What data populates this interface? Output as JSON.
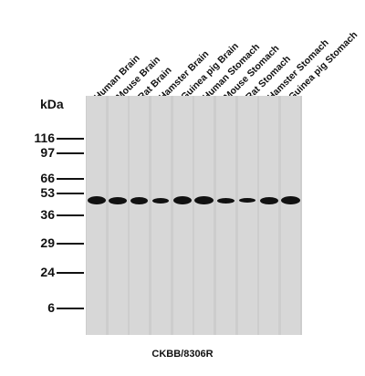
{
  "lanes": [
    "Human Brain",
    "Mouse Brain",
    "Rat Brain",
    "Hamster Brain",
    "Guinea pig Brain",
    "Human Stomach",
    "Mouse Stomach",
    "Rat Stomach",
    "Hamster Stomach",
    "Guinea pig Stomach"
  ],
  "unit": "kDa",
  "markers": [
    "116",
    "97",
    "66",
    "53",
    "36",
    "29",
    "24",
    "6"
  ],
  "antibody": "CKBB/8306R",
  "colors": {
    "membrane": "#cdcdcd",
    "band": "#111111"
  }
}
